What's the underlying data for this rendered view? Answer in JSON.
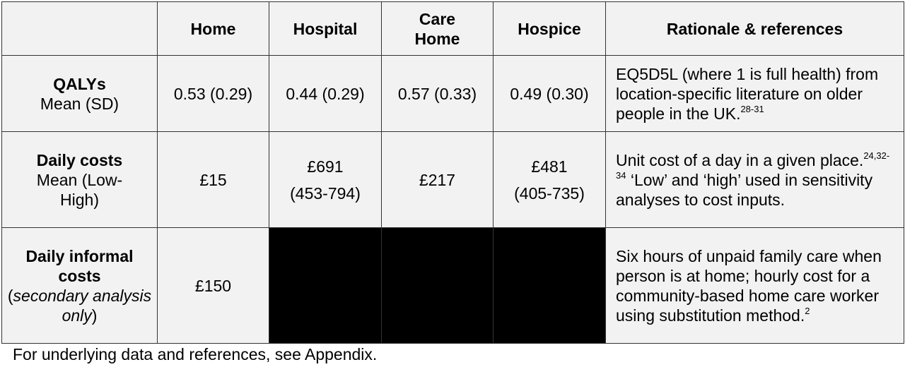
{
  "table": {
    "headers": [
      "",
      "Home",
      "Hospital",
      "Care Home",
      "Hospice",
      "Rationale & references"
    ],
    "rows": [
      {
        "label_bold": "QALYs",
        "label_sub": "Mean (SD)",
        "home": "0.53 (0.29)",
        "hospital": "0.44 (0.29)",
        "care_home": "0.57 (0.33)",
        "hospice": "0.49 (0.30)",
        "rationale_text": "EQ5D5L (where 1 is full health) from location-specific literature on older people in the UK.",
        "rationale_refs": "28-31"
      },
      {
        "label_bold": "Daily costs",
        "label_sub": "Mean (Low-High)",
        "home": "£15",
        "hospital": "£691",
        "hospital_range": "(453-794)",
        "care_home": "£217",
        "hospice": "£481",
        "hospice_range": "(405-735)",
        "rationale_text_1": "Unit cost of a day in a given place.",
        "rationale_refs": "24,32-34",
        "rationale_text_2": " ‘Low’ and ‘high’ used in sensitivity analyses to cost inputs."
      },
      {
        "label_bold": "Daily informal costs",
        "label_sub_pre": "(",
        "label_sub_italic": "secondary analysis only",
        "label_sub_post": ")",
        "home": "£150",
        "hospital": "",
        "care_home": "",
        "hospice": "",
        "rationale_text": "Six hours of unpaid family care when person is at home; hourly cost for a community-based home care worker using substitution method.",
        "rationale_refs": "2"
      }
    ]
  },
  "footnote": "For underlying data and references, see Appendix.",
  "colors": {
    "cell_bg": "#f2f2f2",
    "masked_cell": "#000000",
    "border": "#333333"
  }
}
